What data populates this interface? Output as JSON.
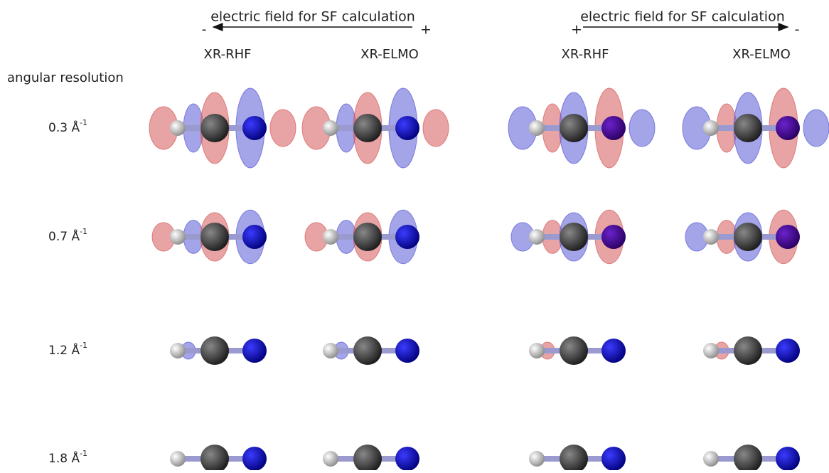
{
  "header": {
    "field_groups": [
      {
        "label": "electric field for SF calculation",
        "left_sign": "-",
        "right_sign": "+"
      },
      {
        "label": "electric field for SF calculation",
        "left_sign": "+",
        "right_sign": "-"
      }
    ],
    "columns": [
      "XR-RHF",
      "XR-ELMO",
      "XR-RHF",
      "XR-ELMO"
    ],
    "row_header": "angular resolution"
  },
  "rows": [
    {
      "base": "0.3 Å",
      "sup": "-1"
    },
    {
      "base": "0.7 Å",
      "sup": "-1"
    },
    {
      "base": "1.2 Å",
      "sup": "-1"
    },
    {
      "base": "1.8 Å",
      "sup": "-1"
    }
  ]
}
